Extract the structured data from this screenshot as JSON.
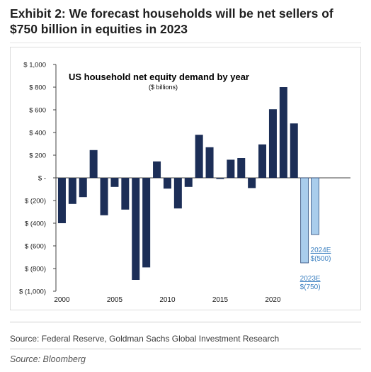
{
  "page": {
    "title": "Exhibit 2: We forecast households will be net sellers of $750 billion in equities in 2023",
    "source": "Source: Federal Reserve, Goldman Sachs Global Investment Research",
    "credit": "Source: Bloomberg"
  },
  "chart_data": {
    "type": "bar",
    "title": "US household net equity demand by year",
    "subtitle": "($ billions)",
    "xlabel": "",
    "ylabel": "",
    "ylim": [
      -1000,
      1000
    ],
    "y_ticks": [
      1000,
      800,
      600,
      400,
      200,
      0,
      -200,
      -400,
      -600,
      -800,
      -1000
    ],
    "y_tick_labels": [
      "$ 1,000",
      "$ 800",
      "$ 600",
      "$ 400",
      "$ 200",
      "$ -",
      "$ (200)",
      "$ (400)",
      "$ (600)",
      "$ (800)",
      "$ (1,000)"
    ],
    "x_ticks": [
      2000,
      2005,
      2010,
      2015,
      2020
    ],
    "x_tick_labels": [
      "2000",
      "2005",
      "2010",
      "2015",
      "2020"
    ],
    "x": [
      2000,
      2001,
      2002,
      2003,
      2004,
      2005,
      2006,
      2007,
      2008,
      2009,
      2010,
      2011,
      2012,
      2013,
      2014,
      2015,
      2016,
      2017,
      2018,
      2019,
      2020,
      2021,
      2022,
      2023,
      2024
    ],
    "values": [
      -400,
      -230,
      -170,
      245,
      -330,
      -80,
      -280,
      -900,
      -790,
      145,
      -95,
      -270,
      -80,
      380,
      270,
      -10,
      160,
      175,
      -90,
      295,
      605,
      800,
      480,
      -750,
      -500
    ],
    "forecast": [
      false,
      false,
      false,
      false,
      false,
      false,
      false,
      false,
      false,
      false,
      false,
      false,
      false,
      false,
      false,
      false,
      false,
      false,
      false,
      false,
      false,
      false,
      false,
      true,
      true
    ],
    "annotations": [
      {
        "x": 2023,
        "label": "2023E",
        "value_label": "$(750)"
      },
      {
        "x": 2024,
        "label": "2024E",
        "value_label": "$(500)"
      }
    ],
    "grid": false,
    "legend": "none",
    "colors": {
      "actual": "#1c2e57",
      "forecast": "#a9cdec",
      "forecast_edge": "#2b4a7a",
      "annotation": "#3a7fc0"
    }
  }
}
